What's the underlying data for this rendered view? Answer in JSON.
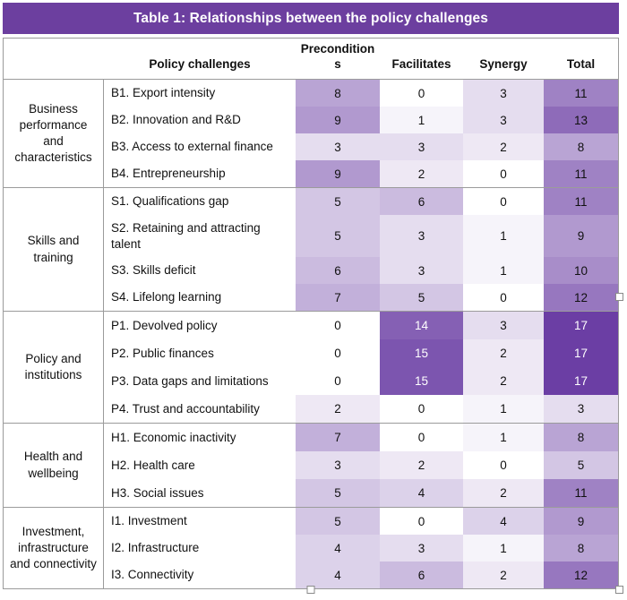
{
  "title": "Table 1: Relationships between the policy challenges",
  "header": {
    "challenge_col": "Policy challenges",
    "value_cols": [
      "Preconditions",
      "Facilitates",
      "Synergy",
      "Total"
    ]
  },
  "groups": [
    {
      "label": "Business performance and characteristics",
      "rows": [
        {
          "challenge": "B1. Export intensity",
          "values": [
            8,
            0,
            3,
            11
          ]
        },
        {
          "challenge": "B2. Innovation and R&D",
          "values": [
            9,
            1,
            3,
            13
          ]
        },
        {
          "challenge": "B3. Access to external finance",
          "values": [
            3,
            3,
            2,
            8
          ]
        },
        {
          "challenge": "B4. Entrepreneurship",
          "values": [
            9,
            2,
            0,
            11
          ]
        }
      ]
    },
    {
      "label": "Skills and training",
      "rows": [
        {
          "challenge": "S1. Qualifications gap",
          "values": [
            5,
            6,
            0,
            11
          ]
        },
        {
          "challenge": "S2. Retaining and attracting talent",
          "values": [
            5,
            3,
            1,
            9
          ]
        },
        {
          "challenge": "S3. Skills deficit",
          "values": [
            6,
            3,
            1,
            10
          ]
        },
        {
          "challenge": "S4. Lifelong learning",
          "values": [
            7,
            5,
            0,
            12
          ]
        }
      ]
    },
    {
      "label": "Policy and institutions",
      "rows": [
        {
          "challenge": "P1. Devolved policy",
          "values": [
            0,
            14,
            3,
            17
          ]
        },
        {
          "challenge": "P2. Public finances",
          "values": [
            0,
            15,
            2,
            17
          ]
        },
        {
          "challenge": "P3. Data gaps and limitations",
          "values": [
            0,
            15,
            2,
            17
          ]
        },
        {
          "challenge": "P4. Trust and accountability",
          "values": [
            2,
            0,
            1,
            3
          ]
        }
      ]
    },
    {
      "label": "Health and wellbeing",
      "rows": [
        {
          "challenge": "H1. Economic inactivity",
          "values": [
            7,
            0,
            1,
            8
          ]
        },
        {
          "challenge": "H2. Health care",
          "values": [
            3,
            2,
            0,
            5
          ]
        },
        {
          "challenge": "H3. Social issues",
          "values": [
            5,
            4,
            2,
            11
          ]
        }
      ]
    },
    {
      "label": "Investment, infrastructure and connectivity",
      "rows": [
        {
          "challenge": "I1. Investment",
          "values": [
            5,
            0,
            4,
            9
          ]
        },
        {
          "challenge": "I2. Infrastructure",
          "values": [
            4,
            3,
            1,
            8
          ]
        },
        {
          "challenge": "I3. Connectivity",
          "values": [
            4,
            6,
            2,
            12
          ]
        }
      ]
    }
  ],
  "heatmap": {
    "min_value": 0,
    "max_value": 17,
    "min_color": "#FFFFFF",
    "max_color": "#6B3EA4",
    "white_text_threshold": 14
  },
  "colors": {
    "title_bg": "#6C3F9F",
    "title_text": "#FFFFFF",
    "border": "#9B9B9B",
    "body_text": "#111111"
  },
  "selection_handles": [
    "right-middle",
    "bottom-center",
    "bottom-right"
  ]
}
